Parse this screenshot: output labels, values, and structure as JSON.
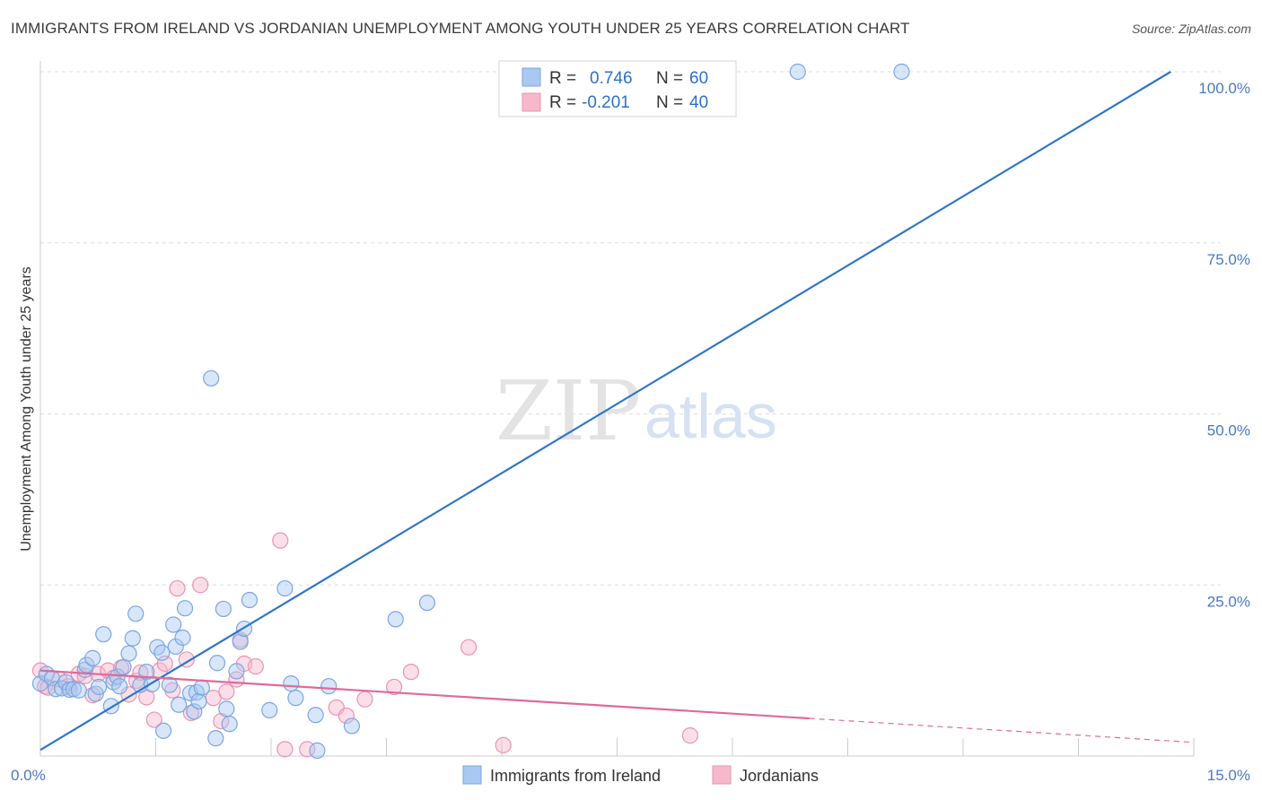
{
  "header": {
    "title": "IMMIGRANTS FROM IRELAND VS JORDANIAN UNEMPLOYMENT AMONG YOUTH UNDER 25 YEARS CORRELATION CHART",
    "source": "Source: ZipAtlas.com"
  },
  "watermark": {
    "zip": "ZIP",
    "atlas": "atlas"
  },
  "legend_top": {
    "rows": [
      {
        "series": "Immigrants from Ireland",
        "r_label": "R =",
        "r_value": "0.746",
        "n_label": "N =",
        "n_value": "60"
      },
      {
        "series": "Jordanians",
        "r_label": "R =",
        "r_value": "-0.201",
        "n_label": "N =",
        "n_value": "40"
      }
    ]
  },
  "legend_bottom": {
    "items": [
      "Immigrants from Ireland",
      "Jordanians"
    ]
  },
  "colors": {
    "blue_fill": "#a9c8f2",
    "blue_stroke": "#7aa6e0",
    "blue_line": "#2e75cc",
    "pink_fill": "#f7b8cc",
    "pink_stroke": "#ea93b0",
    "pink_line": "#e0699a",
    "tick_text": "#4a78c4",
    "grid": "#dddddd"
  },
  "chart_data": {
    "type": "scatter",
    "title": "IMMIGRANTS FROM IRELAND VS JORDANIAN UNEMPLOYMENT AMONG YOUTH UNDER 25 YEARS CORRELATION CHART",
    "xlabel": "",
    "ylabel": "Unemployment Among Youth under 25 years",
    "xlim": [
      0,
      15
    ],
    "ylim": [
      0,
      100
    ],
    "x_tick_labels": [
      "0.0%",
      "15.0%"
    ],
    "y_ticks": [
      25,
      50,
      75,
      100
    ],
    "y_tick_labels": [
      "25.0%",
      "50.0%",
      "75.0%",
      "100.0%"
    ],
    "series": [
      {
        "name": "Immigrants from Ireland",
        "r": 0.746,
        "n": 60,
        "trend": {
          "x0": 0,
          "y0": 0.9,
          "x1": 14.7,
          "y1": 100
        },
        "points": [
          [
            0.0,
            10.6
          ],
          [
            0.08,
            12.0
          ],
          [
            0.15,
            11.4
          ],
          [
            0.2,
            9.8
          ],
          [
            0.28,
            9.9
          ],
          [
            0.33,
            10.8
          ],
          [
            0.38,
            9.7
          ],
          [
            0.43,
            9.8
          ],
          [
            0.5,
            9.6
          ],
          [
            0.58,
            12.6
          ],
          [
            0.6,
            13.3
          ],
          [
            0.68,
            14.3
          ],
          [
            0.72,
            9.1
          ],
          [
            0.76,
            10.1
          ],
          [
            0.82,
            17.8
          ],
          [
            0.92,
            7.3
          ],
          [
            0.95,
            10.8
          ],
          [
            1.0,
            11.6
          ],
          [
            1.03,
            10.2
          ],
          [
            1.08,
            13.0
          ],
          [
            1.15,
            15.0
          ],
          [
            1.2,
            17.2
          ],
          [
            1.24,
            20.8
          ],
          [
            1.3,
            10.4
          ],
          [
            1.38,
            12.3
          ],
          [
            1.45,
            10.5
          ],
          [
            1.52,
            15.9
          ],
          [
            1.58,
            15.1
          ],
          [
            1.6,
            3.7
          ],
          [
            1.68,
            10.4
          ],
          [
            1.73,
            19.2
          ],
          [
            1.76,
            16.0
          ],
          [
            1.8,
            7.5
          ],
          [
            1.85,
            17.3
          ],
          [
            1.88,
            21.6
          ],
          [
            1.95,
            9.2
          ],
          [
            2.0,
            6.5
          ],
          [
            2.03,
            9.3
          ],
          [
            2.06,
            8.0
          ],
          [
            2.1,
            10.0
          ],
          [
            2.22,
            55.2
          ],
          [
            2.28,
            2.6
          ],
          [
            2.3,
            13.6
          ],
          [
            2.38,
            21.5
          ],
          [
            2.42,
            6.9
          ],
          [
            2.46,
            4.7
          ],
          [
            2.55,
            12.4
          ],
          [
            2.6,
            16.7
          ],
          [
            2.65,
            18.6
          ],
          [
            2.72,
            22.8
          ],
          [
            2.98,
            6.7
          ],
          [
            3.18,
            24.5
          ],
          [
            3.26,
            10.6
          ],
          [
            3.32,
            8.5
          ],
          [
            3.58,
            6.0
          ],
          [
            3.6,
            0.8
          ],
          [
            3.75,
            10.2
          ],
          [
            4.05,
            4.4
          ],
          [
            4.62,
            20.0
          ],
          [
            5.03,
            22.4
          ],
          [
            9.85,
            100.0
          ],
          [
            11.2,
            100.0
          ]
        ]
      },
      {
        "name": "Jordanians",
        "r": -0.201,
        "n": 40,
        "trend": {
          "x0": 0,
          "y0": 12.5,
          "x1": 10.0,
          "y1": 5.5
        },
        "trend_dashed": {
          "x0": 10.0,
          "y0": 5.5,
          "x1": 15.0,
          "y1": 2.0
        },
        "points": [
          [
            0.0,
            12.5
          ],
          [
            0.06,
            10.2
          ],
          [
            0.1,
            10.0
          ],
          [
            0.25,
            11.2
          ],
          [
            0.36,
            10.2
          ],
          [
            0.5,
            12.0
          ],
          [
            0.58,
            11.7
          ],
          [
            0.68,
            8.9
          ],
          [
            0.75,
            12.0
          ],
          [
            0.88,
            12.5
          ],
          [
            0.95,
            11.4
          ],
          [
            1.05,
            12.9
          ],
          [
            1.15,
            9.0
          ],
          [
            1.25,
            11.0
          ],
          [
            1.3,
            12.2
          ],
          [
            1.38,
            8.6
          ],
          [
            1.48,
            5.3
          ],
          [
            1.55,
            12.5
          ],
          [
            1.62,
            13.5
          ],
          [
            1.72,
            9.6
          ],
          [
            1.78,
            24.5
          ],
          [
            1.9,
            14.1
          ],
          [
            1.96,
            6.3
          ],
          [
            2.08,
            25.0
          ],
          [
            2.25,
            8.5
          ],
          [
            2.35,
            5.1
          ],
          [
            2.42,
            9.4
          ],
          [
            2.55,
            11.2
          ],
          [
            2.6,
            17.0
          ],
          [
            2.65,
            13.5
          ],
          [
            2.8,
            13.1
          ],
          [
            3.18,
            1.0
          ],
          [
            3.12,
            31.5
          ],
          [
            3.47,
            1.0
          ],
          [
            3.85,
            7.1
          ],
          [
            3.98,
            5.9
          ],
          [
            4.22,
            8.3
          ],
          [
            4.6,
            10.1
          ],
          [
            4.82,
            12.3
          ],
          [
            5.57,
            15.9
          ],
          [
            6.02,
            1.6
          ],
          [
            8.45,
            3.0
          ]
        ]
      }
    ]
  }
}
